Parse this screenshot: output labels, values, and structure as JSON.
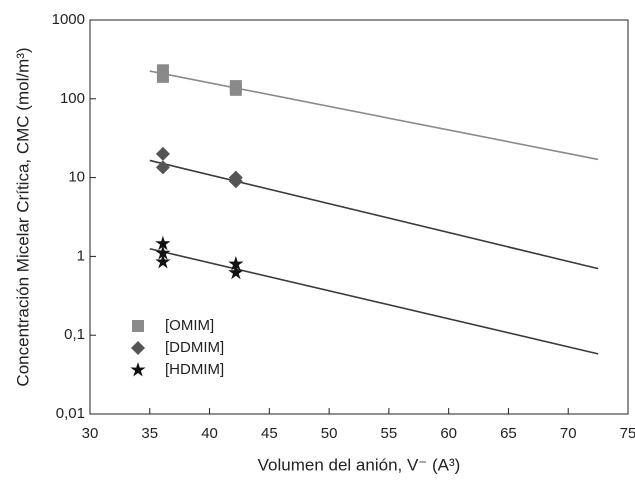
{
  "chart_data": {
    "type": "scatter",
    "xlabel": "Volumen del anión, V⁻ (A³)",
    "ylabel": "Concentración Micelar Crítica, CMC (mol/m³)",
    "xlim": [
      30,
      75
    ],
    "xticks": [
      30,
      35,
      40,
      45,
      50,
      55,
      60,
      65,
      70,
      75
    ],
    "ylim": [
      0.01,
      1000
    ],
    "yscale": "log",
    "yticks": [
      {
        "value": 0.01,
        "label": "0,01"
      },
      {
        "value": 0.1,
        "label": "0,1"
      },
      1,
      10,
      100,
      1000
    ],
    "legend": "lower left",
    "series": [
      {
        "name": "[OMIM]",
        "color": "#8a8a8a",
        "marker": "square",
        "x": [
          36.1,
          36.1,
          42.2,
          42.2
        ],
        "values": [
          230,
          190,
          145,
          130
        ],
        "fit": {
          "color": "#8a8a8a",
          "x": [
            35,
            72.5
          ],
          "values": [
            225,
            17
          ]
        }
      },
      {
        "name": "[DDMIM]",
        "color": "#555555",
        "marker": "diamond",
        "x": [
          36.1,
          36.1,
          42.2,
          42.2
        ],
        "values": [
          20,
          13.5,
          10,
          9
        ],
        "fit": {
          "color": "#3a3a3a",
          "x": [
            35,
            72.5
          ],
          "values": [
            16.5,
            0.7
          ]
        }
      },
      {
        "name": "[HDMIM]",
        "color": "#111111",
        "marker": "star",
        "x": [
          36.1,
          36.1,
          36.1,
          42.2,
          42.2
        ],
        "values": [
          1.45,
          1.1,
          0.85,
          0.8,
          0.62
        ],
        "fit": {
          "color": "#3a3a3a",
          "x": [
            35,
            72.5
          ],
          "values": [
            1.25,
            0.058
          ]
        }
      }
    ]
  }
}
